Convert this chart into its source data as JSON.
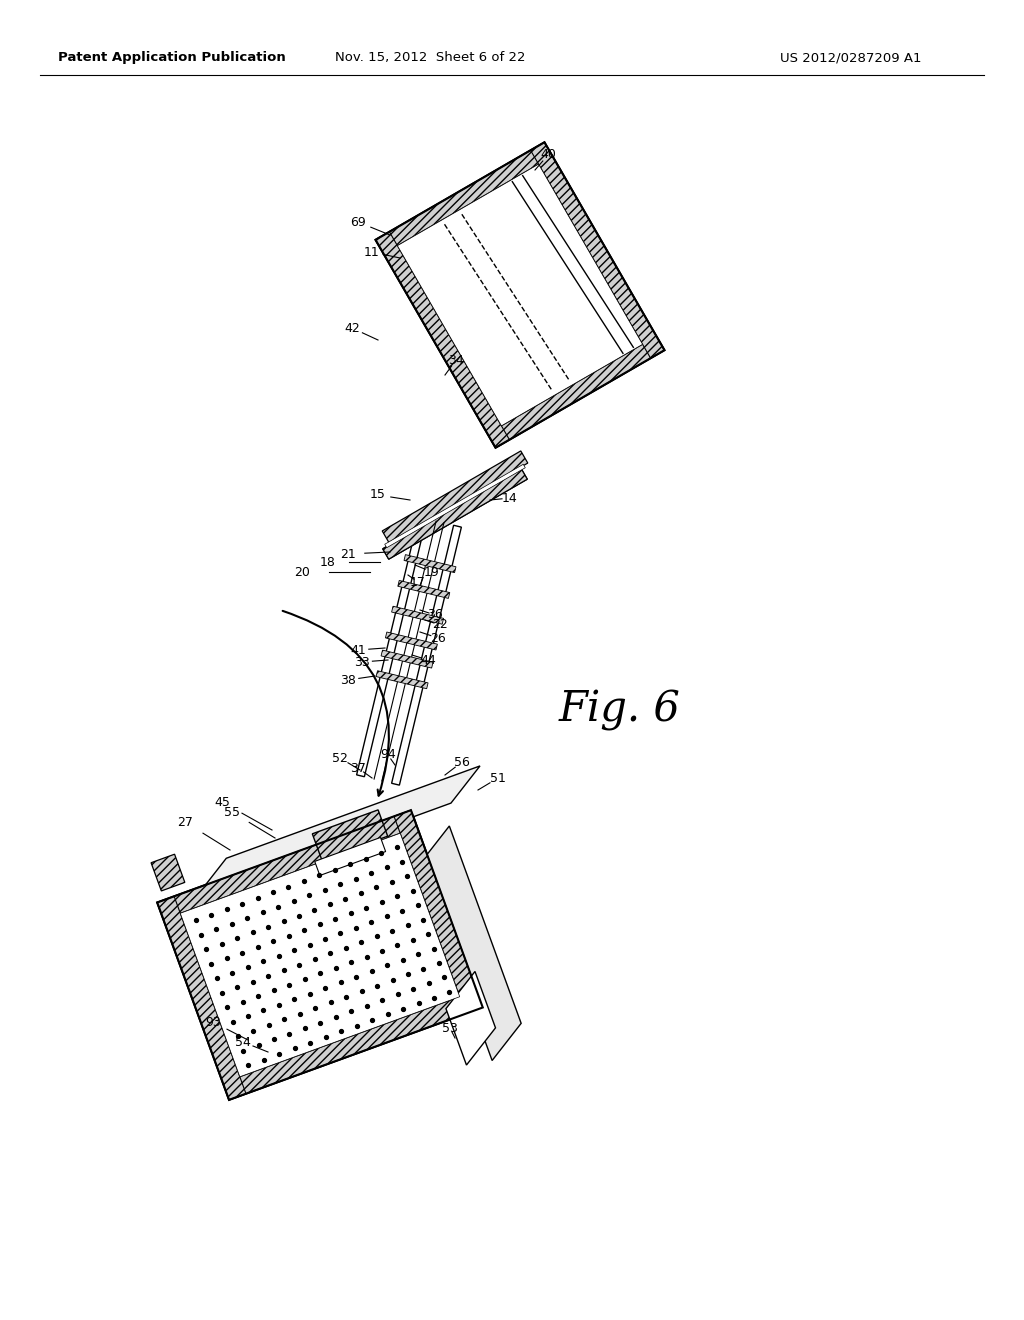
{
  "background_color": "#ffffff",
  "header_left": "Patent Application Publication",
  "header_center": "Nov. 15, 2012  Sheet 6 of 22",
  "header_right": "US 2012/0287209 A1",
  "fig_label": "Fig. 6"
}
